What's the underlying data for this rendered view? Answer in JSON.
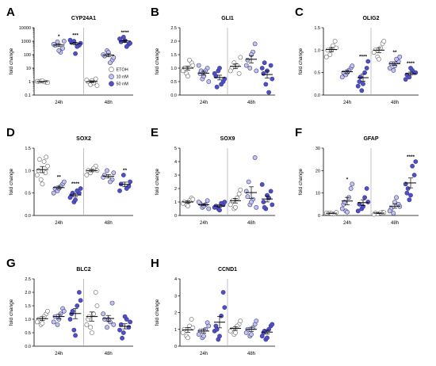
{
  "colors": {
    "ETOH": "#ffffff",
    "10 nM": "#c3c5e8",
    "50 nM": "#4e4fc9",
    "stroke_ETOH": "#666666",
    "stroke_treat": "#3a3a8a",
    "axis": "#000000",
    "divider": "#9a9a9a"
  },
  "legend": {
    "items": [
      "ETOH",
      "10 nM",
      "50 nM"
    ],
    "placement": "inside-right, panel A"
  },
  "chart_data": [
    {
      "id": "A",
      "title": "CYP24A1",
      "ylabel": "fold change",
      "scale": "log",
      "ylim": [
        0.1,
        10000
      ],
      "ticks": [
        0.1,
        1,
        10,
        100,
        1000,
        10000
      ],
      "tick_labels": [
        "0.1",
        "1",
        "10",
        "100",
        "1000",
        "10000"
      ],
      "groups": [
        "24h",
        "48h"
      ],
      "series": [
        {
          "name": "ETOH",
          "values": [
            [
              1,
              0.9,
              1.1,
              0.95,
              1.05,
              0.85,
              1.15
            ],
            [
              1,
              1.6,
              0.6,
              0.8,
              1.3,
              0.5,
              1.2
            ]
          ]
        },
        {
          "name": "10 nM",
          "values": [
            [
              500,
              300,
              900,
              150,
              600,
              1000,
              200
            ],
            [
              80,
              40,
              200,
              25,
              100,
              60,
              150
            ]
          ]
        },
        {
          "name": "50 nM",
          "values": [
            [
              800,
              500,
              1000,
              400,
              1200,
              700,
              120
            ],
            [
              900,
              600,
              2000,
              400,
              1500,
              700,
              1100
            ]
          ]
        }
      ],
      "sig": [
        [
          "",
          "*",
          "***"
        ],
        [
          "",
          "",
          "****"
        ]
      ]
    },
    {
      "id": "B",
      "title": "GLI1",
      "ylabel": "fold change",
      "scale": "linear",
      "ylim": [
        0,
        2.5
      ],
      "ticks": [
        0,
        0.5,
        1,
        1.5,
        2,
        2.5
      ],
      "tick_labels": [
        "0.0",
        "0.5",
        "1.0",
        "1.5",
        "2.0",
        "2.5"
      ],
      "groups": [
        "24h",
        "48h"
      ],
      "series": [
        {
          "name": "ETOH",
          "values": [
            [
              1.0,
              1.2,
              0.8,
              1.3,
              0.9,
              1.1,
              0.7,
              1.0
            ],
            [
              1.0,
              0.8,
              1.2,
              1.1,
              0.9,
              1.4
            ]
          ]
        },
        {
          "name": "10 nM",
          "values": [
            [
              0.8,
              1.0,
              0.6,
              0.9,
              1.1,
              0.5,
              0.7,
              0.9
            ],
            [
              1.3,
              1.9,
              1.0,
              1.6,
              1.1,
              0.9,
              1.5
            ]
          ]
        },
        {
          "name": "50 nM",
          "values": [
            [
              0.7,
              0.5,
              0.9,
              0.4,
              0.8,
              0.6,
              1.0,
              0.3
            ],
            [
              0.8,
              1.1,
              0.4,
              0.1,
              1.0,
              0.6,
              0.9,
              1.2
            ]
          ]
        }
      ],
      "sig": [
        [
          "",
          "",
          ""
        ],
        [
          "",
          "",
          ""
        ]
      ]
    },
    {
      "id": "C",
      "title": "OLIG2",
      "ylabel": "fold change",
      "scale": "linear",
      "ylim": [
        0,
        1.5
      ],
      "ticks": [
        0,
        0.5,
        1,
        1.5
      ],
      "tick_labels": [
        "0.0",
        "0.5",
        "1.0",
        "1.5"
      ],
      "groups": [
        "24h",
        "48h"
      ],
      "series": [
        {
          "name": "ETOH",
          "values": [
            [
              1.0,
              1.2,
              0.9,
              1.1,
              0.85,
              1.05,
              1.0
            ],
            [
              1.0,
              1.15,
              0.85,
              1.05,
              0.95,
              1.2,
              0.8
            ]
          ]
        },
        {
          "name": "10 nM",
          "values": [
            [
              0.5,
              0.6,
              0.45,
              0.55,
              0.4,
              0.65,
              0.5
            ],
            [
              0.7,
              0.75,
              0.55,
              0.8,
              0.6,
              0.85,
              0.65
            ]
          ]
        },
        {
          "name": "50 nM",
          "values": [
            [
              0.3,
              0.6,
              0.1,
              0.5,
              0.2,
              0.75,
              0.25,
              0.4
            ],
            [
              0.45,
              0.5,
              0.4,
              0.55,
              0.35,
              0.5,
              0.6
            ]
          ]
        }
      ],
      "sig": [
        [
          "",
          "",
          "****"
        ],
        [
          "",
          "**",
          "****"
        ]
      ]
    },
    {
      "id": "D",
      "title": "SOX2",
      "ylabel": "fold change",
      "scale": "linear",
      "ylim": [
        0,
        1.5
      ],
      "ticks": [
        0,
        0.5,
        1,
        1.5
      ],
      "tick_labels": [
        "0.0",
        "0.5",
        "1.0",
        "1.5"
      ],
      "groups": [
        "24h",
        "48h"
      ],
      "series": [
        {
          "name": "ETOH",
          "values": [
            [
              1.0,
              1.3,
              0.8,
              1.2,
              0.9,
              1.1,
              0.7,
              1.25,
              0.95
            ],
            [
              1.0,
              1.1,
              0.95,
              1.05,
              0.9,
              1.0
            ]
          ]
        },
        {
          "name": "10 nM",
          "values": [
            [
              0.6,
              0.7,
              0.55,
              0.65,
              0.5,
              0.75,
              0.6
            ],
            [
              0.9,
              0.8,
              1.0,
              0.75,
              0.85,
              0.95
            ]
          ]
        },
        {
          "name": "50 nM",
          "values": [
            [
              0.45,
              0.5,
              0.3,
              0.55,
              0.4,
              0.6,
              0.35,
              0.5
            ],
            [
              0.7,
              0.65,
              0.9,
              0.6,
              0.55,
              0.75
            ]
          ]
        }
      ],
      "sig": [
        [
          "",
          "**",
          "****"
        ],
        [
          "",
          "",
          "**"
        ]
      ]
    },
    {
      "id": "E",
      "title": "SOX9",
      "ylabel": "fold change",
      "scale": "linear",
      "ylim": [
        0,
        5
      ],
      "ticks": [
        0,
        1,
        2,
        3,
        4,
        5
      ],
      "tick_labels": [
        "0",
        "1",
        "2",
        "3",
        "4",
        "5"
      ],
      "groups": [
        "24h",
        "48h"
      ],
      "series": [
        {
          "name": "ETOH",
          "values": [
            [
              1.0,
              1.3,
              0.8,
              1.1,
              0.9,
              1.2,
              0.7
            ],
            [
              1.0,
              1.6,
              0.5,
              1.3,
              0.8,
              1.9,
              0.6,
              1.1
            ]
          ]
        },
        {
          "name": "10 nM",
          "values": [
            [
              0.9,
              1.1,
              0.6,
              0.8,
              1.0,
              0.5,
              0.7
            ],
            [
              1.4,
              4.3,
              0.8,
              1.2,
              1.8,
              0.6,
              1.0,
              2.5
            ]
          ]
        },
        {
          "name": "50 nM",
          "values": [
            [
              0.7,
              0.8,
              0.5,
              0.9,
              0.6,
              1.0,
              0.4
            ],
            [
              1.0,
              1.8,
              0.5,
              1.3,
              2.3,
              0.8,
              1.5,
              0.6
            ]
          ]
        }
      ],
      "sig": [
        [
          "",
          "",
          ""
        ],
        [
          "",
          "",
          ""
        ]
      ]
    },
    {
      "id": "F",
      "title": "GFAP",
      "ylabel": "fold change",
      "scale": "linear",
      "ylim": [
        0,
        30
      ],
      "ticks": [
        0,
        10,
        20,
        30
      ],
      "tick_labels": [
        "0",
        "10",
        "20",
        "30"
      ],
      "groups": [
        "24h",
        "48h"
      ],
      "series": [
        {
          "name": "ETOH",
          "values": [
            [
              1.0,
              0.8,
              1.2,
              0.6,
              1.1,
              1.4,
              0.9
            ],
            [
              1.0,
              1.5,
              0.7,
              1.2,
              0.5,
              1.3
            ]
          ]
        },
        {
          "name": "10 nM",
          "values": [
            [
              5.0,
              12.0,
              2.0,
              8.0,
              3.0,
              14.0,
              1.5,
              6.0
            ],
            [
              3.0,
              5.0,
              1.0,
              8.0,
              2.0,
              4.0,
              6.0
            ]
          ]
        },
        {
          "name": "50 nM",
          "values": [
            [
              5.0,
              12.0,
              3.0,
              8.0,
              2.0,
              6.0,
              4.0
            ],
            [
              10.0,
              18.0,
              7.0,
              22.0,
              14.0,
              24.0,
              9.0,
              12.0
            ]
          ]
        }
      ],
      "sig": [
        [
          "",
          "*",
          ""
        ],
        [
          "",
          "",
          "****"
        ]
      ]
    },
    {
      "id": "G",
      "title": "BLC2",
      "ylabel": "fold change",
      "scale": "linear",
      "ylim": [
        0,
        2.5
      ],
      "ticks": [
        0,
        0.5,
        1,
        1.5,
        2,
        2.5
      ],
      "tick_labels": [
        "0.0",
        "0.5",
        "1.0",
        "1.5",
        "2.0",
        "2.5"
      ],
      "groups": [
        "24h",
        "48h"
      ],
      "series": [
        {
          "name": "ETOH",
          "values": [
            [
              1.0,
              1.2,
              0.8,
              1.1,
              0.9,
              1.3,
              0.85
            ],
            [
              1.0,
              2.0,
              0.7,
              1.2,
              0.8,
              1.5,
              0.5,
              1.1
            ]
          ]
        },
        {
          "name": "10 nM",
          "values": [
            [
              1.1,
              1.4,
              0.8,
              1.2,
              0.9,
              1.3,
              1.0
            ],
            [
              1.0,
              1.6,
              0.7,
              0.9,
              1.2,
              0.8,
              1.0
            ]
          ]
        },
        {
          "name": "50 nM",
          "values": [
            [
              1.2,
              2.0,
              0.6,
              1.5,
              1.0,
              1.7,
              0.4,
              1.3
            ],
            [
              0.8,
              0.7,
              0.5,
              1.0,
              0.6,
              0.9,
              1.1,
              0.3
            ]
          ]
        }
      ],
      "sig": [
        [
          "",
          "",
          ""
        ],
        [
          "",
          "",
          ""
        ]
      ]
    },
    {
      "id": "H",
      "title": "CCND1",
      "ylabel": "fold change",
      "scale": "linear",
      "ylim": [
        0,
        4
      ],
      "ticks": [
        0,
        1,
        2,
        3,
        4
      ],
      "tick_labels": [
        "0",
        "1",
        "2",
        "3",
        "4"
      ],
      "groups": [
        "24h",
        "48h"
      ],
      "series": [
        {
          "name": "ETOH",
          "values": [
            [
              1.0,
              1.6,
              0.6,
              1.2,
              0.8,
              1.1,
              0.5
            ],
            [
              1.0,
              1.3,
              0.7,
              1.2,
              0.9,
              1.5,
              0.8
            ]
          ]
        },
        {
          "name": "10 nM",
          "values": [
            [
              0.9,
              1.4,
              0.5,
              1.0,
              0.7,
              1.2,
              0.6
            ],
            [
              1.0,
              1.3,
              0.6,
              1.1,
              0.8,
              1.5,
              0.7
            ]
          ]
        },
        {
          "name": "50 nM",
          "values": [
            [
              1.2,
              3.2,
              0.4,
              1.8,
              0.9,
              2.3,
              0.6,
              1.0
            ],
            [
              0.8,
              1.2,
              0.4,
              1.0,
              0.6,
              1.3,
              0.5,
              0.9
            ]
          ]
        }
      ],
      "sig": [
        [
          "",
          "",
          ""
        ],
        [
          "",
          "",
          ""
        ]
      ]
    }
  ]
}
